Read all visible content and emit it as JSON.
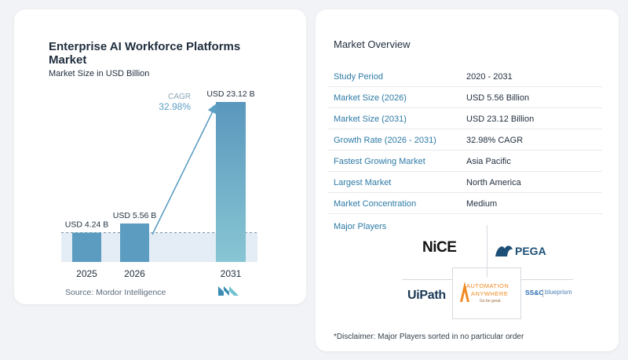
{
  "chart_data": {
    "type": "bar",
    "title": "Enterprise AI Workforce Platforms Market",
    "subtitle": "Market Size in USD Billion",
    "categories": [
      "2025",
      "2026",
      "2031"
    ],
    "values": [
      4.24,
      5.56,
      23.12
    ],
    "value_labels": [
      "USD 4.24 B",
      "USD 5.56 B",
      "USD 23.12 B"
    ],
    "cagr_label": "CAGR",
    "cagr_value": "32.98%",
    "ylim": [
      0,
      25
    ],
    "grid": false,
    "colors": {
      "bar_light": "#5c9cc0",
      "bar_tall_top": "#5a97bd",
      "bar_tall_bottom": "#88c6d4",
      "arrow": "#5d9ec4",
      "band": "#e4edf5",
      "cagr_text": "#5d9ec4"
    }
  },
  "source": "Source:  Mordor Intelligence",
  "overview": {
    "title": "Market Overview",
    "rows": [
      {
        "label": "Study Period",
        "value": "2020 - 2031"
      },
      {
        "label": "Market Size (2026)",
        "value": "USD 5.56 Billion"
      },
      {
        "label": "Market Size (2031)",
        "value": "USD 23.12 Billion"
      },
      {
        "label": "Growth Rate (2026 - 2031)",
        "value": "32.98% CAGR"
      },
      {
        "label": "Fastest Growing Market",
        "value": "Asia Pacific"
      },
      {
        "label": "Largest Market",
        "value": "North America"
      },
      {
        "label": "Market Concentration",
        "value": "Medium"
      }
    ],
    "players_title": "Major Players",
    "players": {
      "nice": "NiCE",
      "pega": "PEGA",
      "uipath": "UiPath",
      "aa_line1": "AUTOMATION",
      "aa_line2": "ANYWHERE",
      "aa_tag": "Go be great.",
      "ssc": "SS&C",
      "blueprism": "blueprism"
    },
    "disclaimer": "*Disclaimer: Major Players sorted in no particular order"
  }
}
